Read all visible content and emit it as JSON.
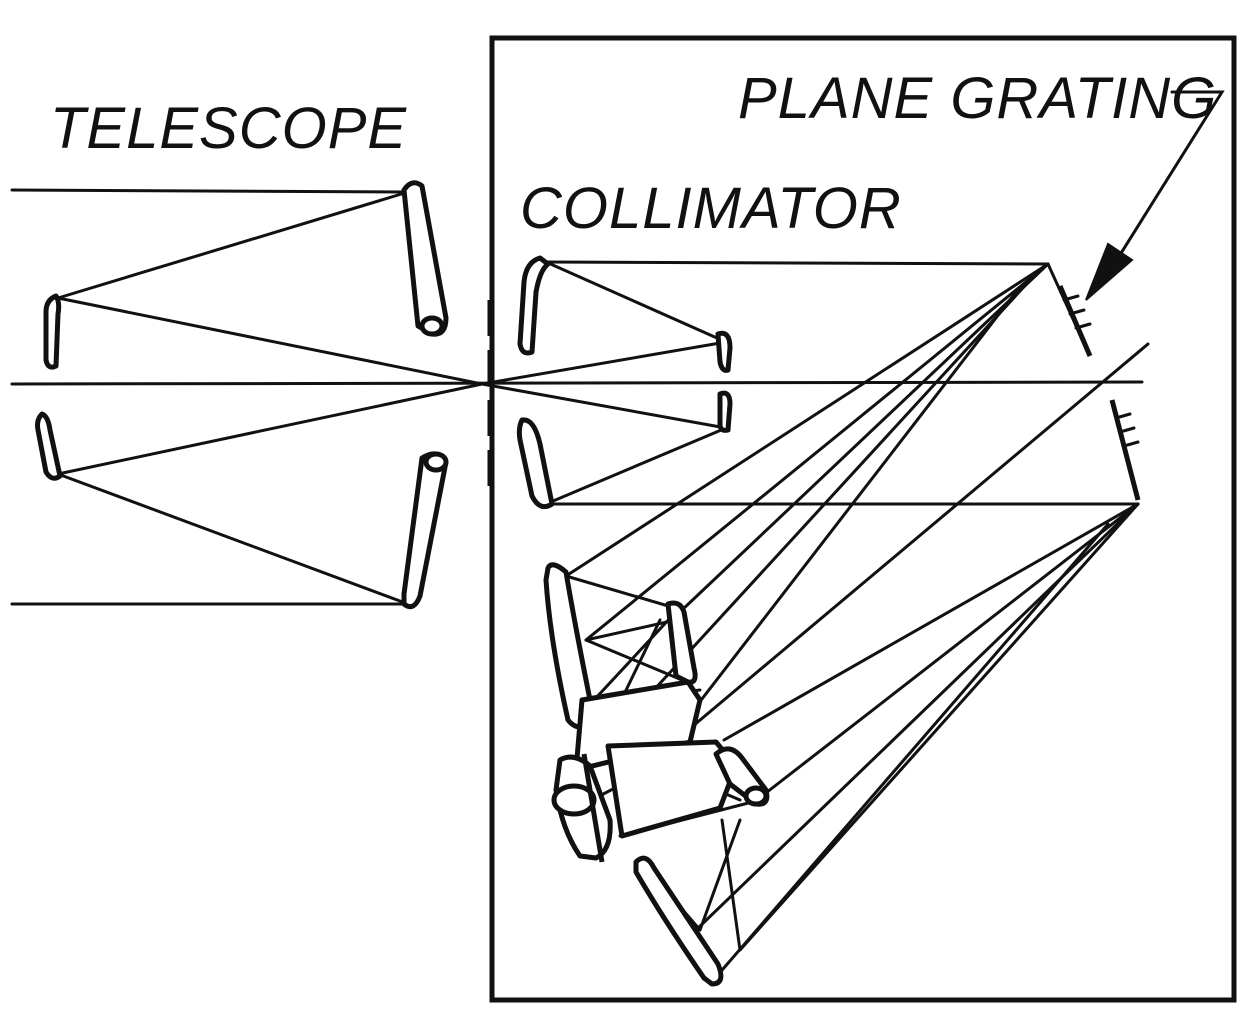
{
  "labels": {
    "telescope": "TELESCOPE",
    "plane_grating": "PLANE GRATING",
    "collimator": "COLLIMATOR"
  },
  "colors": {
    "ink": "#111111",
    "paper": "#ffffff"
  }
}
